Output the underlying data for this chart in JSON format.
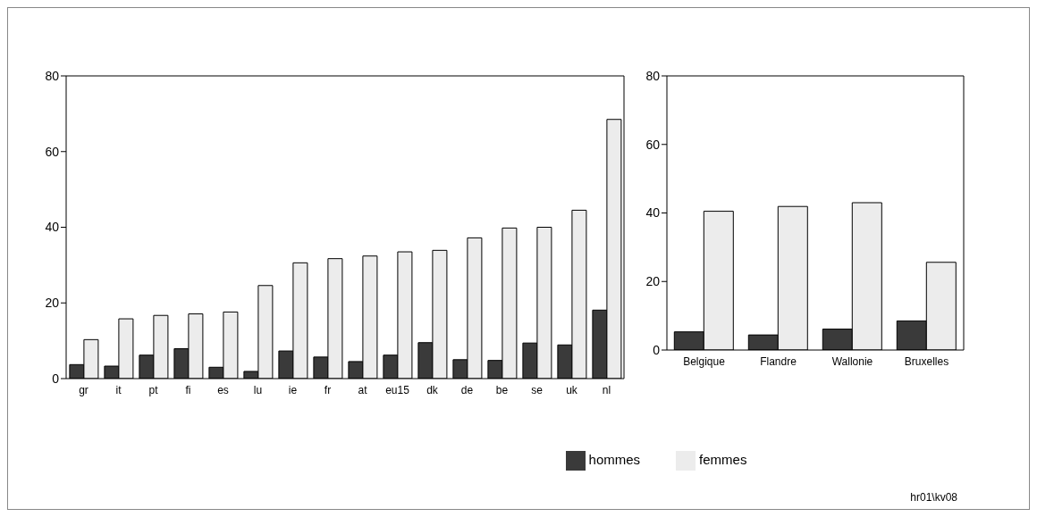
{
  "chart_data": [
    {
      "type": "bar",
      "categories": [
        "gr",
        "it",
        "pt",
        "fi",
        "es",
        "lu",
        "ie",
        "fr",
        "at",
        "eu15",
        "dk",
        "de",
        "be",
        "se",
        "uk",
        "nl"
      ],
      "ylim": [
        0,
        80
      ],
      "yticks": [
        0,
        20,
        40,
        60,
        80
      ],
      "legend": false,
      "series": [
        {
          "color": "#3a3a3a",
          "values": [
            3.7,
            3.3,
            6.2,
            7.9,
            3.0,
            1.9,
            7.3,
            5.7,
            4.5,
            6.2,
            9.5,
            5.0,
            4.8,
            9.4,
            8.9,
            18.1
          ]
        },
        {
          "color": "#ececec",
          "values": [
            10.3,
            15.8,
            16.7,
            17.1,
            17.6,
            24.6,
            30.6,
            31.7,
            32.4,
            33.5,
            33.9,
            37.2,
            39.8,
            40.0,
            44.5,
            68.5
          ]
        }
      ]
    },
    {
      "type": "bar",
      "categories": [
        "Belgique",
        "Flandre",
        "Wallonie",
        "Bruxelles"
      ],
      "ylim": [
        0,
        80
      ],
      "yticks": [
        0,
        20,
        40,
        60,
        80
      ],
      "legend": "bottom",
      "series": [
        {
          "name": "hommes",
          "color": "#3a3a3a",
          "values": [
            5.3,
            4.4,
            6.1,
            8.5
          ]
        },
        {
          "name": "femmes",
          "color": "#ececec",
          "values": [
            40.5,
            41.9,
            43.0,
            25.6
          ]
        }
      ],
      "annotations": [
        "hr01\\kv08"
      ]
    }
  ]
}
